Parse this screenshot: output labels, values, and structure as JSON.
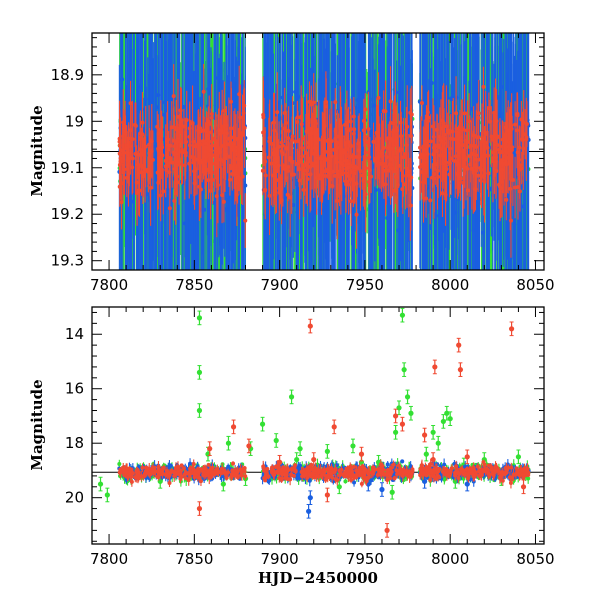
{
  "colors": {
    "green": "#33e033",
    "blue": "#1a5fe0",
    "red": "#f04a32",
    "frame": "#000000"
  },
  "chart_data": [
    {
      "type": "scatter",
      "xlabel": "",
      "ylabel": "Magnitude",
      "xlim": [
        7790,
        8055
      ],
      "ylim": [
        19.32,
        18.81
      ],
      "y_inverted": true,
      "xticks": [
        7800,
        7850,
        7900,
        7950,
        8000,
        8050
      ],
      "yticks": [
        18.9,
        19,
        19.1,
        19.2,
        19.3
      ],
      "reference_line": 19.065,
      "observing_seasons": [
        [
          7806,
          7880
        ],
        [
          7890,
          7978
        ],
        [
          7982,
          8046
        ]
      ],
      "series": [
        {
          "color": "green",
          "error_bars": true
        },
        {
          "color": "blue",
          "error_bars": true
        },
        {
          "color": "red",
          "error_bars": true
        }
      ]
    },
    {
      "type": "scatter",
      "xlabel": "HJD−2450000",
      "ylabel": "Magnitude",
      "xlim": [
        7790,
        8055
      ],
      "ylim": [
        21.7,
        13.0
      ],
      "y_inverted": true,
      "xticks": [
        7800,
        7850,
        7900,
        7950,
        8000,
        8050
      ],
      "yticks": [
        14,
        16,
        18,
        20
      ],
      "reference_line": 19.065,
      "observing_seasons": [
        [
          7806,
          7880
        ],
        [
          7890,
          7978
        ],
        [
          7982,
          8046
        ]
      ],
      "series": [
        {
          "color": "green",
          "outliers": [
            [
              7799,
              19.9
            ],
            [
              7809,
              19.1
            ],
            [
              7853,
              13.4
            ],
            [
              7853,
              15.4
            ],
            [
              7853,
              16.8
            ],
            [
              7858,
              18.4
            ],
            [
              7867,
              19.5
            ],
            [
              7870,
              18.0
            ],
            [
              7880,
              19.3
            ],
            [
              7883,
              18.2
            ],
            [
              7890,
              17.3
            ],
            [
              7898,
              17.9
            ],
            [
              7907,
              16.3
            ],
            [
              7910,
              18.6
            ],
            [
              7912,
              18.2
            ],
            [
              7928,
              18.3
            ],
            [
              7943,
              18.1
            ],
            [
              7948,
              18.7
            ],
            [
              7958,
              18.7
            ],
            [
              7966,
              19.8
            ],
            [
              7968,
              17.6
            ],
            [
              7970,
              16.7
            ],
            [
              7972,
              13.3
            ],
            [
              7973,
              15.3
            ],
            [
              7975,
              16.3
            ],
            [
              7977,
              16.9
            ],
            [
              7986,
              18.4
            ],
            [
              7990,
              17.6
            ],
            [
              7993,
              18.0
            ],
            [
              7996,
              17.2
            ],
            [
              7998,
              16.9
            ],
            [
              8000,
              17.1
            ],
            [
              8003,
              19.4
            ],
            [
              8008,
              18.8
            ],
            [
              8020,
              18.6
            ],
            [
              8030,
              19.3
            ],
            [
              8040,
              18.5
            ],
            [
              7795,
              19.5
            ],
            [
              7830,
              19.4
            ],
            [
              7935,
              19.6
            ]
          ]
        },
        {
          "color": "blue",
          "outliers": [
            [
              7917,
              20.5
            ],
            [
              7918,
              20.0
            ],
            [
              7952,
              19.5
            ],
            [
              7960,
              19.7
            ],
            [
              7985,
              19.4
            ],
            [
              8010,
              19.5
            ]
          ]
        },
        {
          "color": "red",
          "outliers": [
            [
              7853,
              20.4
            ],
            [
              7859,
              18.2
            ],
            [
              7873,
              17.4
            ],
            [
              7882,
              18.1
            ],
            [
              7918,
              13.7
            ],
            [
              7920,
              18.6
            ],
            [
              7928,
              19.9
            ],
            [
              7932,
              17.4
            ],
            [
              7948,
              18.4
            ],
            [
              7963,
              21.2
            ],
            [
              7968,
              17.0
            ],
            [
              7972,
              17.3
            ],
            [
              7985,
              17.7
            ],
            [
              7991,
              15.2
            ],
            [
              8005,
              14.4
            ],
            [
              8006,
              15.3
            ],
            [
              8010,
              18.5
            ],
            [
              8036,
              13.8
            ],
            [
              8043,
              19.6
            ],
            [
              7900,
              18.7
            ],
            [
              7990,
              18.6
            ]
          ]
        }
      ]
    }
  ]
}
